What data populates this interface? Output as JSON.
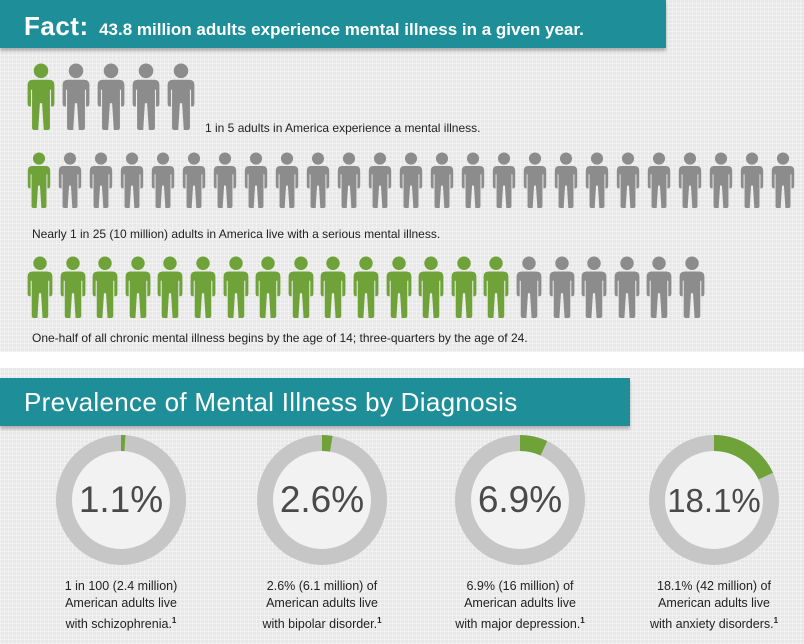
{
  "fact": {
    "label": "Fact:",
    "text": "43.8 million adults experience mental illness in a given year."
  },
  "people_rows": [
    {
      "caption": "1 in 5 adults in America experience a mental illness.",
      "total": 5,
      "highlighted": 1
    },
    {
      "caption": "Nearly 1 in 25 (10 million) adults in America live with a serious mental illness.",
      "total": 25,
      "highlighted": 1
    },
    {
      "caption": "One-half of all chronic mental illness begins by the age of 14; three-quarters by the age of 24.",
      "total": 21,
      "highlighted": 15
    }
  ],
  "prevalence": {
    "title": "Prevalence of Mental Illness by Diagnosis",
    "items": [
      {
        "value": 1.1,
        "label": "1.1%",
        "caption_lines": [
          "1 in 100 (2.4 million)",
          "American adults live",
          "with schizophrenia."
        ],
        "footnote": "1"
      },
      {
        "value": 2.6,
        "label": "2.6%",
        "caption_lines": [
          "2.6% (6.1 million) of",
          "American adults live",
          "with bipolar disorder."
        ],
        "footnote": "1"
      },
      {
        "value": 6.9,
        "label": "6.9%",
        "caption_lines": [
          "6.9% (16 million) of",
          "American adults live",
          "with major depression."
        ],
        "footnote": "1"
      },
      {
        "value": 18.1,
        "label": "18.1%",
        "caption_lines": [
          "18.1% (42 million) of",
          "American adults live",
          "with anxiety disorders."
        ],
        "footnote": "1"
      }
    ]
  },
  "colors": {
    "banner": "#1e8f99",
    "highlight": "#6fa33a",
    "person": "#8c8c8c",
    "ring": "#c6c6c6",
    "ring_inner": "#f2f2f2",
    "percent_text": "#4a4a4a"
  },
  "icons": {
    "person": "person-icon"
  }
}
